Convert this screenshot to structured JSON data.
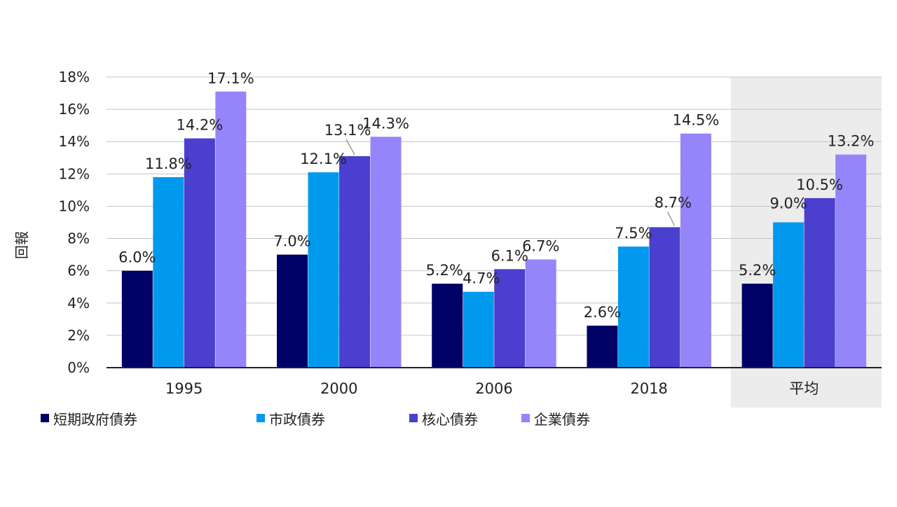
{
  "chart_data": {
    "type": "bar",
    "title": "",
    "xlabel": "",
    "ylabel": "回報",
    "ylim": [
      0,
      18
    ],
    "y_ticks": [
      "0%",
      "2%",
      "4%",
      "6%",
      "8%",
      "10%",
      "12%",
      "14%",
      "16%",
      "18%"
    ],
    "grid": true,
    "legend_position": "bottom",
    "highlight_category": "平均",
    "categories": [
      "1995",
      "2000",
      "2006",
      "2018",
      "平均"
    ],
    "series": [
      {
        "name": "短期政府債券",
        "color": "#000066",
        "values": [
          6.0,
          7.0,
          5.2,
          2.6,
          5.2
        ],
        "labels": [
          "6.0%",
          "7.0%",
          "5.2%",
          "2.6%",
          "5.2%"
        ]
      },
      {
        "name": "市政債券",
        "color": "#0099ee",
        "values": [
          11.8,
          12.1,
          4.7,
          7.5,
          9.0
        ],
        "labels": [
          "11.8%",
          "12.1%",
          "4.7%",
          "7.5%",
          "9.0%"
        ]
      },
      {
        "name": "核心債券",
        "color": "#4a3fcf",
        "values": [
          14.2,
          13.1,
          6.1,
          8.7,
          10.5
        ],
        "labels": [
          "14.2%",
          "13.1%",
          "6.1%",
          "8.7%",
          "10.5%"
        ]
      },
      {
        "name": "企業債券",
        "color": "#9585fb",
        "values": [
          17.1,
          14.3,
          6.7,
          14.5,
          13.2
        ],
        "labels": [
          "17.1%",
          "14.3%",
          "6.7%",
          "14.5%",
          "13.2%"
        ]
      }
    ]
  }
}
